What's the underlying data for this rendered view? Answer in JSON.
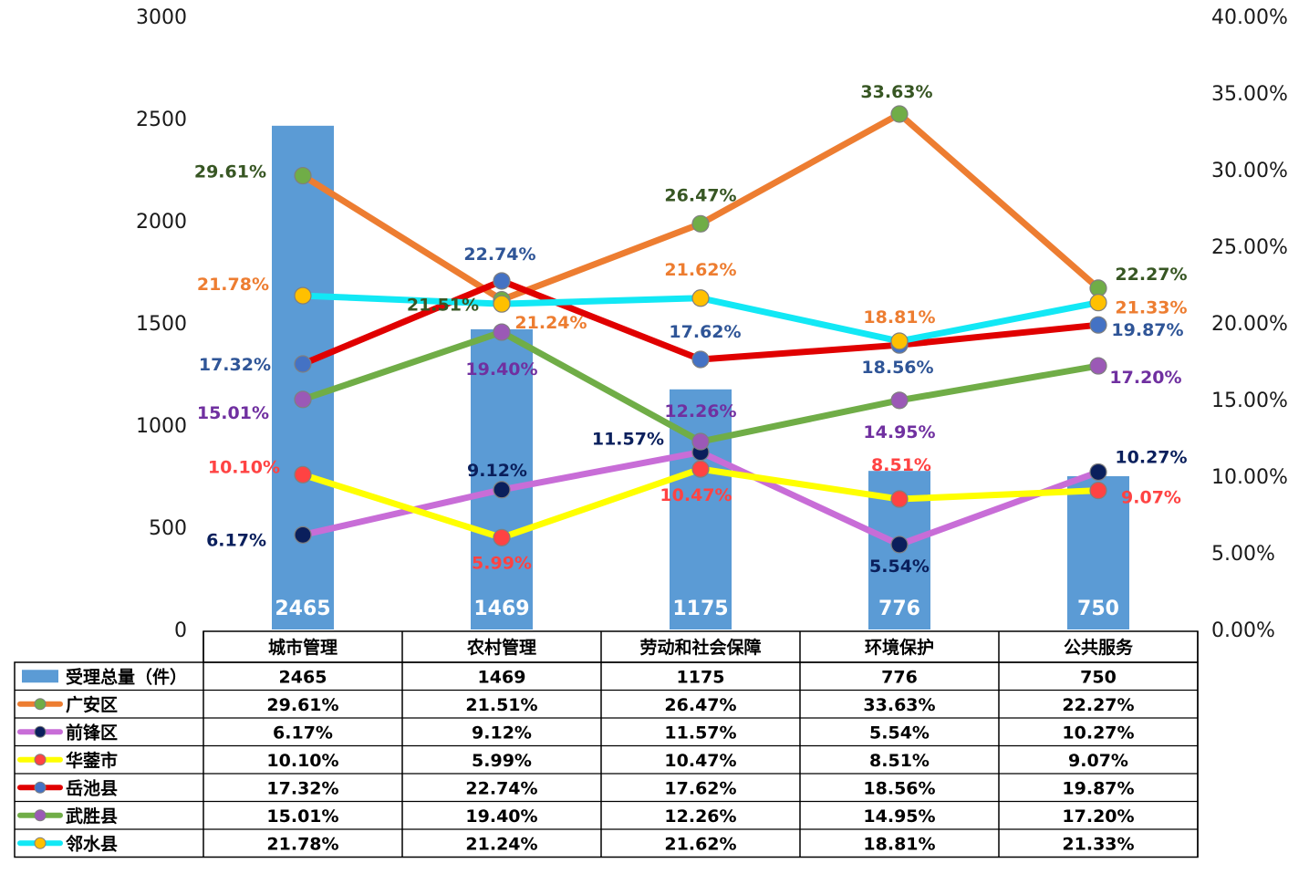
{
  "colors": {
    "bar": "#5b9bd5",
    "guangan": "#ed7d31",
    "guangan_marker": "#70ad47",
    "guangan_label": "#375623",
    "qianfeng": "#c86dd7",
    "qianfeng_marker": "#0a1f5c",
    "qianfeng_label": "#0a1f5c",
    "huaying": "#ffff00",
    "huaying_marker": "#ff4343",
    "huaying_label": "#ff4343",
    "yuechi": "#e00000",
    "yuechi_marker": "#4472c4",
    "yuechi_label": "#2f5597",
    "wusheng": "#70ad47",
    "wusheng_marker": "#9b59b6",
    "wusheng_label": "#7030a0",
    "linshui": "#12e8f5",
    "linshui_marker": "#ffc000",
    "linshui_label": "#ed7d31"
  },
  "chart_data": {
    "type": "bar",
    "categories": [
      "城市管理",
      "农村管理",
      "劳动和社会保障",
      "环境保护",
      "公共服务"
    ],
    "left_axis": {
      "min": 0,
      "max": 3000,
      "ticks": [
        "0",
        "500",
        "1000",
        "1500",
        "2000",
        "2500",
        "3000"
      ]
    },
    "right_axis": {
      "min": 0,
      "max": 40,
      "ticks": [
        "0.00%",
        "5.00%",
        "10.00%",
        "15.00%",
        "20.00%",
        "25.00%",
        "30.00%",
        "35.00%",
        "40.00%"
      ]
    },
    "grid": false,
    "legend": "data-table",
    "bar_series": {
      "name": "受理总量（件）",
      "values": [
        2465,
        1469,
        1175,
        776,
        750
      ],
      "labels": [
        "2465",
        "1469",
        "1175",
        "776",
        "750"
      ]
    },
    "series": [
      {
        "key": "guangan",
        "name": "广安区",
        "type": "line",
        "values": [
          29.61,
          21.51,
          26.47,
          33.63,
          22.27
        ],
        "labels": [
          "29.61%",
          "21.51%",
          "26.47%",
          "33.63%",
          "22.27%"
        ]
      },
      {
        "key": "qianfeng",
        "name": "前锋区",
        "type": "line",
        "values": [
          6.17,
          9.12,
          11.57,
          5.54,
          10.27
        ],
        "labels": [
          "6.17%",
          "9.12%",
          "11.57%",
          "5.54%",
          "10.27%"
        ]
      },
      {
        "key": "huaying",
        "name": "华蓥市",
        "type": "line",
        "values": [
          10.1,
          5.99,
          10.47,
          8.51,
          9.07
        ],
        "labels": [
          "10.10%",
          "5.99%",
          "10.47%",
          "8.51%",
          "9.07%"
        ]
      },
      {
        "key": "yuechi",
        "name": "岳池县",
        "type": "line",
        "values": [
          17.32,
          22.74,
          17.62,
          18.56,
          19.87
        ],
        "labels": [
          "17.32%",
          "22.74%",
          "17.62%",
          "18.56%",
          "19.87%"
        ]
      },
      {
        "key": "wusheng",
        "name": "武胜县",
        "type": "line",
        "values": [
          15.01,
          19.4,
          12.26,
          14.95,
          17.2
        ],
        "labels": [
          "15.01%",
          "19.40%",
          "12.26%",
          "14.95%",
          "17.20%"
        ]
      },
      {
        "key": "linshui",
        "name": "邻水县",
        "type": "line",
        "values": [
          21.78,
          21.24,
          21.62,
          18.81,
          21.33
        ],
        "labels": [
          "21.78%",
          "21.24%",
          "21.62%",
          "18.81%",
          "21.33%"
        ]
      }
    ]
  }
}
